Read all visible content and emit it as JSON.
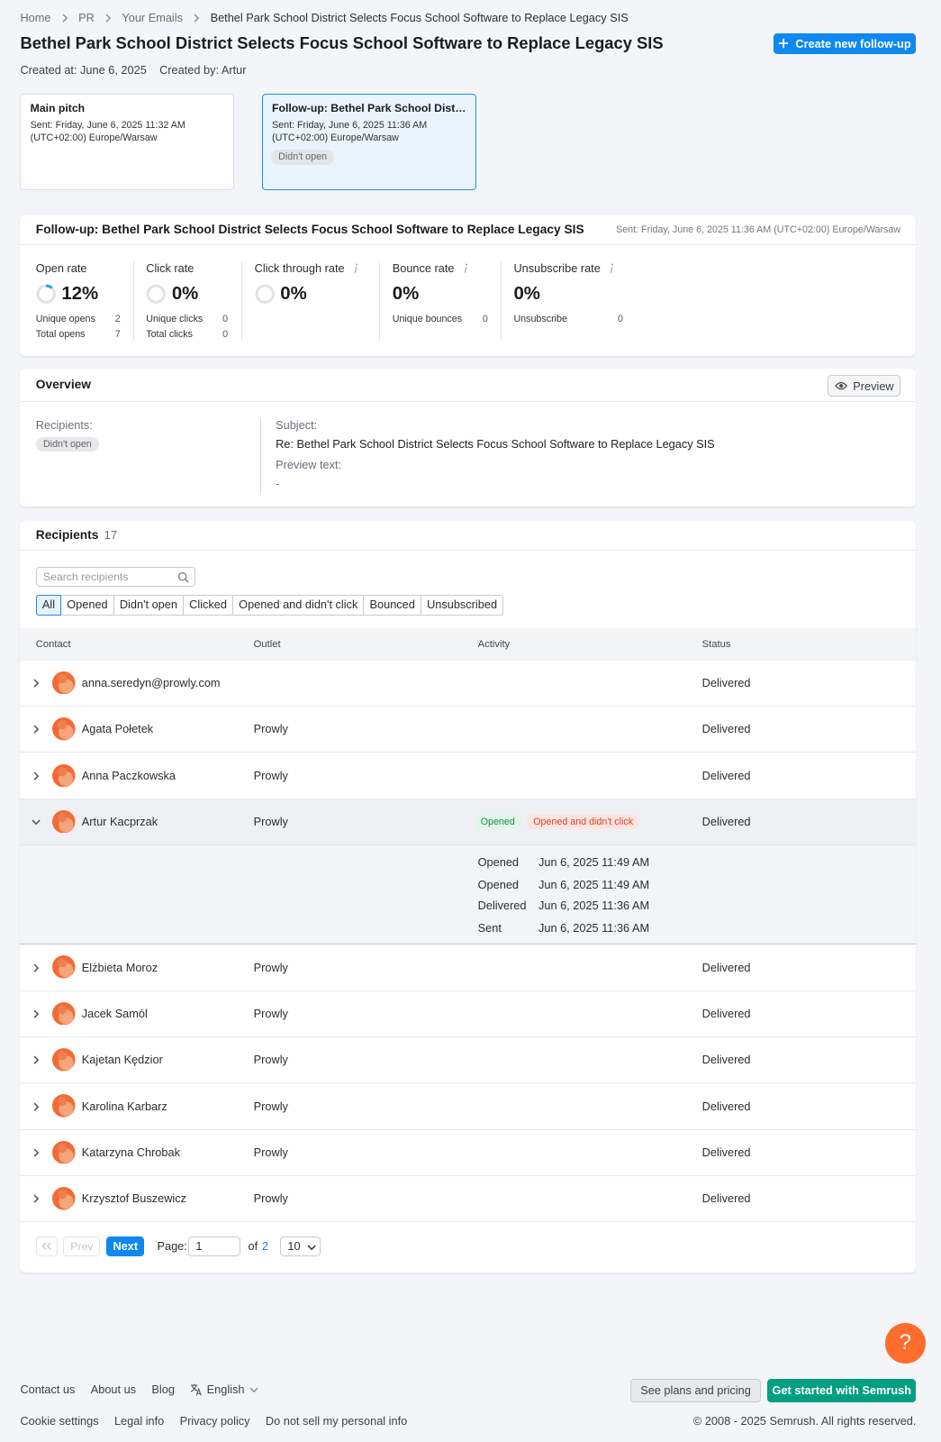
{
  "breadcrumb": [
    "Home",
    "PR",
    "Your Emails",
    "Bethel Park School District Selects Focus School Software to Replace Legacy SIS"
  ],
  "header": {
    "title": "Bethel Park School District Selects Focus School Software to Replace Legacy SIS",
    "button": "Create new follow-up",
    "created_at": "Created at: June 6, 2025",
    "created_by": "Created by: Artur"
  },
  "email_cards": [
    {
      "title": "Main pitch",
      "sent": "Sent: Friday, June 6, 2025 11:32 AM",
      "timezone": "(UTC+02:00) Europe/Warsaw"
    },
    {
      "title": "Follow-up: Bethel Park School Dist…",
      "sent": "Sent: Friday, June 6, 2025 11:36 AM",
      "timezone": "(UTC+02:00) Europe/Warsaw",
      "badge": "Didn't open",
      "selected": true
    }
  ],
  "stats": {
    "title": "Follow-up: Bethel Park School District Selects Focus School Software to Replace Legacy SIS",
    "sent": "Sent: Friday, June 6, 2025 11:36 AM (UTC+02:00) Europe/Warsaw",
    "metrics": [
      {
        "label": "Open rate",
        "value": "12%",
        "ring": true,
        "rows": [
          [
            "Unique opens",
            2
          ],
          [
            "Total opens",
            7
          ]
        ]
      },
      {
        "label": "Click rate",
        "value": "0%",
        "ring": true,
        "rows": [
          [
            "Unique clicks",
            0
          ],
          [
            "Total clicks",
            0
          ]
        ]
      },
      {
        "label": "Click through rate",
        "value": "0%",
        "ring": true,
        "info_icon": true
      },
      {
        "label": "Bounce rate",
        "value": "0%",
        "info_icon": true,
        "rows": [
          [
            "Unique bounces",
            0
          ]
        ]
      },
      {
        "label": "Unsubscribe rate",
        "value": "0%",
        "info_icon": true,
        "rows": [
          [
            "Unsubscribe",
            0
          ]
        ]
      }
    ]
  },
  "overview": {
    "title": "Overview",
    "preview_button": "Preview",
    "recipients_label": "Recipients:",
    "recipients_badge": "Didn't open",
    "subject_label": "Subject:",
    "subject": "Re: Bethel Park School District Selects Focus School Software to Replace Legacy SIS",
    "preview_text_label": "Preview text:",
    "preview_text": "-"
  },
  "recipients": {
    "title": "Recipients",
    "count": 17,
    "search_placeholder": "Search recipients",
    "filters": [
      "All",
      "Opened",
      "Didn't open",
      "Clicked",
      "Opened and didn't click",
      "Bounced",
      "Unsubscribed"
    ],
    "columns": [
      "Contact",
      "Outlet",
      "Activity",
      "Status"
    ],
    "rows": [
      {
        "contact": "anna.seredyn@prowly.com",
        "status": "Delivered"
      },
      {
        "contact": "Agata Połetek",
        "outlet": "Prowly",
        "status": "Delivered"
      },
      {
        "contact": "Anna Paczkowska",
        "outlet": "Prowly",
        "status": "Delivered"
      },
      {
        "contact": "Artur Kacprzak",
        "outlet": "Prowly",
        "activity": [
          "Opened",
          "Opened and didn't click"
        ],
        "status": "Delivered",
        "expanded": true,
        "details": [
          [
            "Opened",
            "Jun 6, 2025 11:49 AM"
          ],
          [
            "Opened",
            "Jun 6, 2025 11:49 AM"
          ],
          [
            "Delivered",
            "Jun 6, 2025 11:36 AM"
          ],
          [
            "Sent",
            "Jun 6, 2025 11:36 AM"
          ]
        ]
      },
      {
        "contact": "Elżbieta Moroz",
        "outlet": "Prowly",
        "status": "Delivered"
      },
      {
        "contact": "Jacek Samól",
        "outlet": "Prowly",
        "status": "Delivered"
      },
      {
        "contact": "Kajetan Kędzior",
        "outlet": "Prowly",
        "status": "Delivered"
      },
      {
        "contact": "Karolina Karbarz",
        "outlet": "Prowly",
        "status": "Delivered"
      },
      {
        "contact": "Katarzyna Chrobak",
        "outlet": "Prowly",
        "status": "Delivered"
      },
      {
        "contact": "Krzysztof Buszewicz",
        "outlet": "Prowly",
        "status": "Delivered"
      }
    ],
    "pagination": {
      "prev": "Prev",
      "next": "Next",
      "page_label": "Page:",
      "page": 1,
      "of": "of",
      "total_pages": 2,
      "per_page": 10
    }
  },
  "help_button": "?",
  "footer": {
    "links": [
      "Contact us",
      "About us",
      "Blog"
    ],
    "language": "English",
    "plans_button": "See plans and pricing",
    "start_button": "Get started with Semrush",
    "legal_links": [
      "Cookie settings",
      "Legal info",
      "Privacy policy",
      "Do not sell my personal info"
    ],
    "copyright": "© 2008 - 2025 Semrush. All rights reserved."
  }
}
